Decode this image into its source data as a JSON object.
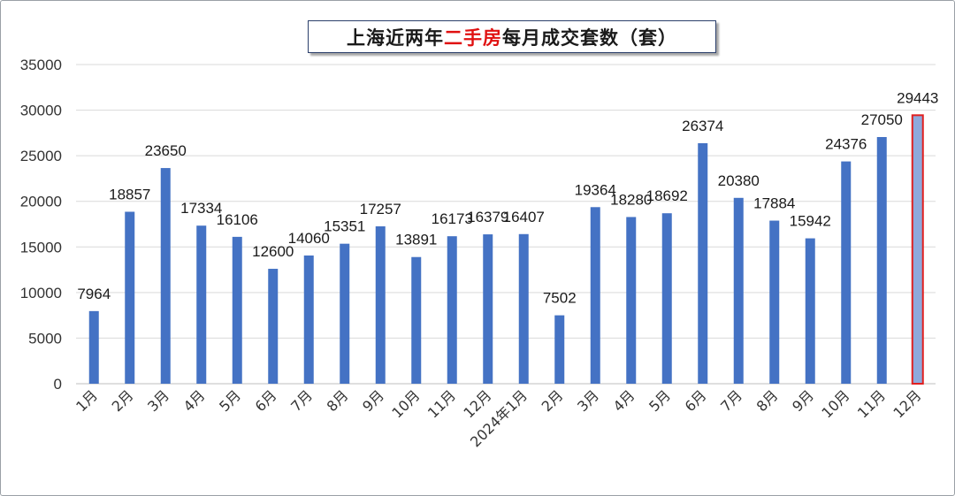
{
  "title": {
    "before": "上海近两年",
    "highlight": "二手房",
    "after": "每月成交套数（套）"
  },
  "colors": {
    "bar": "#4472c4",
    "highlight_fill": "#8ea9db",
    "highlight_border": "#e02020",
    "highlight_text": "#e01010",
    "grid": "#d9d9d9"
  },
  "chart_data": {
    "type": "bar",
    "title": "上海近两年二手房每月成交套数（套）",
    "xlabel": "",
    "ylabel": "",
    "ylim": [
      0,
      35000
    ],
    "yticks": [
      0,
      5000,
      10000,
      15000,
      20000,
      25000,
      30000,
      35000
    ],
    "grid": true,
    "categories": [
      "1月",
      "2月",
      "3月",
      "4月",
      "5月",
      "6月",
      "7月",
      "8月",
      "9月",
      "10月",
      "11月",
      "12月",
      "2024年1月",
      "2月",
      "3月",
      "4月",
      "5月",
      "6月",
      "7月",
      "8月",
      "9月",
      "10月",
      "11月",
      "12月"
    ],
    "values": [
      7964,
      18857,
      23650,
      17334,
      16106,
      12600,
      14060,
      15351,
      17257,
      13891,
      16173,
      16379,
      16407,
      7502,
      19364,
      18280,
      18692,
      26374,
      20380,
      17884,
      15942,
      24376,
      27050,
      29443
    ],
    "highlighted_index": 23
  }
}
